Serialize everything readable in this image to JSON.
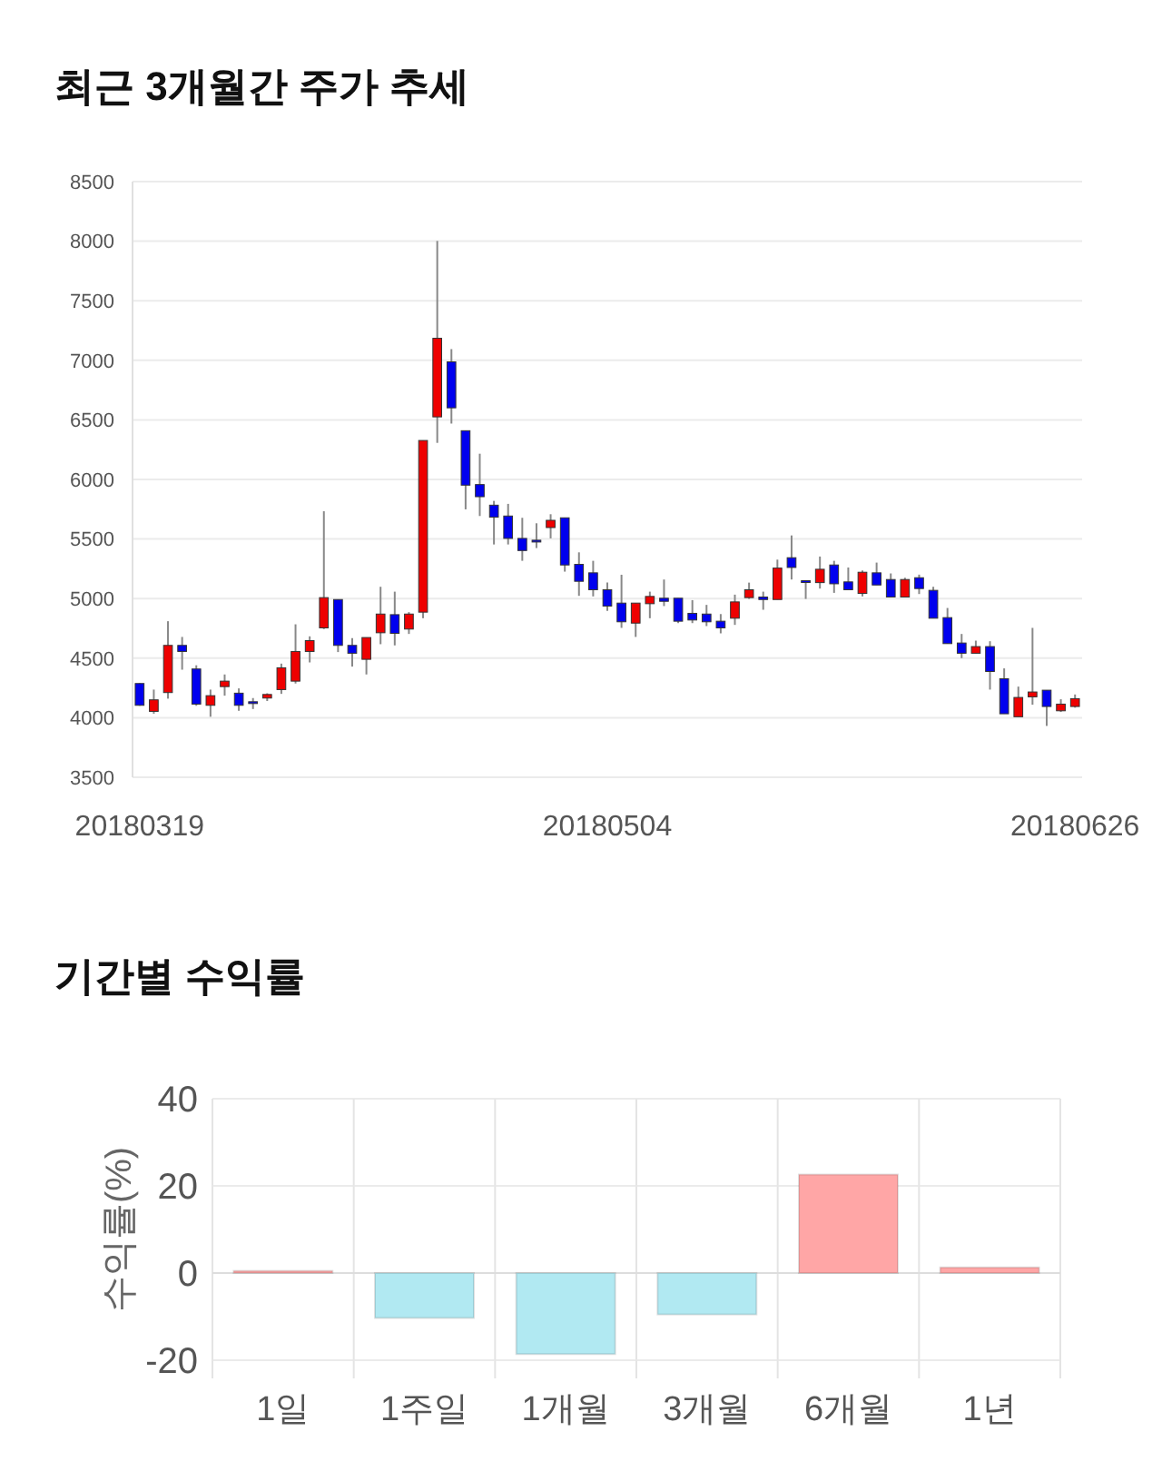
{
  "chart_data": [
    {
      "type": "candlestick",
      "title": "최근 3개월간 주가 추세",
      "categories": [
        "20180319",
        null,
        null,
        null,
        null,
        null,
        null,
        null,
        null,
        null,
        null,
        null,
        null,
        null,
        null,
        null,
        null,
        null,
        null,
        null,
        null,
        null,
        null,
        null,
        null,
        null,
        null,
        null,
        null,
        null,
        null,
        null,
        null,
        "20180504",
        null,
        null,
        null,
        null,
        null,
        null,
        null,
        null,
        null,
        null,
        null,
        null,
        null,
        null,
        null,
        null,
        null,
        null,
        null,
        null,
        null,
        null,
        null,
        null,
        null,
        null,
        null,
        null,
        null,
        null,
        null,
        null,
        "20180626"
      ],
      "ohlc": [
        [
          4287,
          4290,
          4100,
          4104
        ],
        [
          4053,
          4236,
          4033,
          4150
        ],
        [
          4211,
          4810,
          4160,
          4607
        ],
        [
          4607,
          4678,
          4403,
          4556
        ],
        [
          4409,
          4440,
          4100,
          4114
        ],
        [
          4104,
          4236,
          4008,
          4185
        ],
        [
          4261,
          4363,
          4185,
          4307
        ],
        [
          4206,
          4246,
          4058,
          4104
        ],
        [
          4134,
          4165,
          4073,
          4119
        ],
        [
          4165,
          4205,
          4140,
          4195
        ],
        [
          4236,
          4454,
          4200,
          4419
        ],
        [
          4307,
          4784,
          4287,
          4556
        ],
        [
          4556,
          4683,
          4464,
          4647
        ],
        [
          4754,
          5733,
          4744,
          5008
        ],
        [
          4992,
          4992,
          4551,
          4607
        ],
        [
          4607,
          4668,
          4429,
          4541
        ],
        [
          4490,
          4673,
          4363,
          4673
        ],
        [
          4713,
          5099,
          4617,
          4870
        ],
        [
          4865,
          5058,
          4607,
          4708
        ],
        [
          4744,
          4886,
          4703,
          4870
        ],
        [
          4886,
          6327,
          4835,
          6327
        ],
        [
          6525,
          8002,
          6307,
          7185
        ],
        [
          6987,
          7094,
          6469,
          6601
        ],
        [
          6409,
          6409,
          5749,
          5952
        ],
        [
          5957,
          6216,
          5693,
          5855
        ],
        [
          5784,
          5820,
          5454,
          5683
        ],
        [
          5693,
          5795,
          5454,
          5505
        ],
        [
          5505,
          5678,
          5317,
          5403
        ],
        [
          5490,
          5632,
          5424,
          5485
        ],
        [
          5596,
          5708,
          5505,
          5657
        ],
        [
          5678,
          5678,
          5226,
          5282
        ],
        [
          5287,
          5388,
          5023,
          5145
        ],
        [
          5216,
          5317,
          5018,
          5074
        ],
        [
          5074,
          5134,
          4896,
          4937
        ],
        [
          4962,
          5200,
          4754,
          4805
        ],
        [
          4794,
          4962,
          4678,
          4962
        ],
        [
          4957,
          5058,
          4835,
          5018
        ],
        [
          5003,
          5160,
          4937,
          4977
        ],
        [
          5003,
          5003,
          4794,
          4810
        ],
        [
          4876,
          4987,
          4794,
          4820
        ],
        [
          4870,
          4947,
          4769,
          4805
        ],
        [
          4810,
          4870,
          4708,
          4754
        ],
        [
          4835,
          5033,
          4779,
          4972
        ],
        [
          5008,
          5134,
          4997,
          5074
        ],
        [
          5013,
          5058,
          4906,
          4992
        ],
        [
          4992,
          5327,
          4992,
          5256
        ],
        [
          5343,
          5530,
          5160,
          5261
        ],
        [
          5150,
          5150,
          4997,
          5140
        ],
        [
          5134,
          5353,
          5084,
          5246
        ],
        [
          5282,
          5317,
          5048,
          5124
        ],
        [
          5140,
          5261,
          5074,
          5074
        ],
        [
          5043,
          5236,
          5018,
          5221
        ],
        [
          5216,
          5302,
          5114,
          5114
        ],
        [
          5160,
          5211,
          5013,
          5013
        ],
        [
          5013,
          5175,
          5013,
          5160
        ],
        [
          5175,
          5201,
          5038,
          5084
        ],
        [
          5069,
          5099,
          4835,
          4835
        ],
        [
          4840,
          4921,
          4622,
          4622
        ],
        [
          4627,
          4703,
          4500,
          4541
        ],
        [
          4541,
          4647,
          4541,
          4597
        ],
        [
          4597,
          4642,
          4236,
          4388
        ],
        [
          4327,
          4414,
          4033,
          4033
        ],
        [
          4008,
          4261,
          4008,
          4170
        ],
        [
          4175,
          4754,
          4109,
          4216
        ],
        [
          4231,
          4231,
          3931,
          4094
        ],
        [
          4058,
          4155,
          4048,
          4114
        ],
        [
          4094,
          4195,
          4084,
          4160
        ]
      ],
      "colors": [
        "#0000ee",
        "#ee0000",
        "#ee0000",
        "#0000ee",
        "#0000ee",
        "#ee0000",
        "#ee0000",
        "#0000ee",
        "#0000ee",
        "#ee0000",
        "#ee0000",
        "#ee0000",
        "#ee0000",
        "#ee0000",
        "#0000ee",
        "#0000ee",
        "#ee0000",
        "#ee0000",
        "#0000ee",
        "#ee0000",
        "#ee0000",
        "#ee0000",
        "#0000ee",
        "#0000ee",
        "#0000ee",
        "#0000ee",
        "#0000ee",
        "#0000ee",
        "#0000ee",
        "#ee0000",
        "#0000ee",
        "#0000ee",
        "#0000ee",
        "#0000ee",
        "#0000ee",
        "#ee0000",
        "#ee0000",
        "#0000ee",
        "#0000ee",
        "#0000ee",
        "#0000ee",
        "#0000ee",
        "#ee0000",
        "#ee0000",
        "#0000ee",
        "#ee0000",
        "#0000ee",
        "#0000ee",
        "#ee0000",
        "#0000ee",
        "#0000ee",
        "#ee0000",
        "#0000ee",
        "#0000ee",
        "#ee0000",
        "#0000ee",
        "#0000ee",
        "#0000ee",
        "#0000ee",
        "#ee0000",
        "#0000ee",
        "#0000ee",
        "#ee0000",
        "#ee0000",
        "#0000ee",
        "#ee0000",
        "#ee0000"
      ],
      "ylim": [
        3500,
        8500
      ],
      "yticks": [
        3500,
        4000,
        4500,
        5000,
        5500,
        6000,
        6500,
        7000,
        7500,
        8000,
        8500
      ],
      "grid": "y"
    },
    {
      "type": "bar",
      "title": "기간별 수익률",
      "ylabel": "수익률(%)",
      "categories": [
        "1일",
        "1주일",
        "1개월",
        "3개월",
        "6개월",
        "1년"
      ],
      "values": [
        0.5,
        -10.3,
        -18.6,
        -9.5,
        22.6,
        1.3
      ],
      "colors": [
        "#ffa6a6",
        "#b1e9f2",
        "#b1e9f2",
        "#b1e9f2",
        "#ffa6a6",
        "#ffa6a6"
      ],
      "ylim": [
        -20,
        40
      ],
      "yticks": [
        -20,
        0,
        20,
        40
      ],
      "grid": true
    }
  ]
}
